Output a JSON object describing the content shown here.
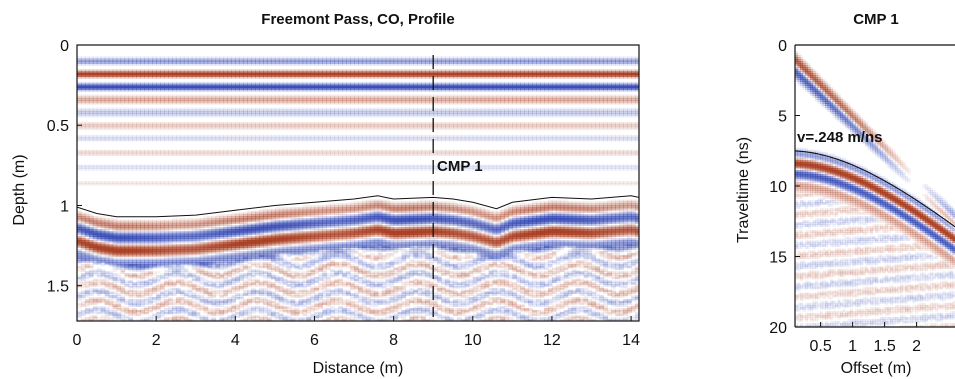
{
  "colors": {
    "red": "#a83c20",
    "blue": "#3347b4",
    "axis": "#111111",
    "pick": "#111111"
  },
  "chart_data": [
    {
      "type": "heatmap",
      "title": "Freemont Pass, CO, Profile",
      "xlabel": "Distance (m)",
      "ylabel": "Depth (m)",
      "xlim": [
        0,
        14.2
      ],
      "ylim": [
        0,
        1.72
      ],
      "y_inverted": true,
      "xticks": [
        0,
        2,
        4,
        6,
        8,
        10,
        12,
        14
      ],
      "yticks": [
        0,
        0.5,
        1,
        1.5
      ],
      "ytick_labels": [
        "0",
        "0.5",
        "1",
        "1.5"
      ],
      "reflections": [
        {
          "depth": 0.1,
          "amp": -0.45
        },
        {
          "depth": 0.18,
          "amp": 1.0
        },
        {
          "depth": 0.26,
          "amp": -1.0
        },
        {
          "depth": 0.34,
          "amp": 0.35
        },
        {
          "depth": 0.42,
          "amp": -0.25
        },
        {
          "depth": 0.5,
          "amp": 0.2
        },
        {
          "depth": 0.58,
          "amp": -0.15
        },
        {
          "depth": 0.67,
          "amp": 0.15
        },
        {
          "depth": 0.76,
          "amp": -0.12
        },
        {
          "depth": 0.86,
          "amp": 0.1
        }
      ],
      "interface": {
        "x": [
          0,
          0.5,
          1,
          2,
          3,
          4,
          5,
          6,
          7,
          7.6,
          8,
          9,
          9.5,
          10,
          10.6,
          11,
          12,
          13,
          14,
          14.2
        ],
        "depth": [
          1.01,
          1.05,
          1.07,
          1.07,
          1.06,
          1.03,
          1.0,
          0.98,
          0.96,
          0.94,
          0.96,
          0.95,
          0.96,
          0.98,
          1.02,
          0.98,
          0.95,
          0.96,
          0.94,
          0.95
        ]
      },
      "marker": {
        "x": 9,
        "label": "CMP 1"
      }
    },
    {
      "type": "heatmap",
      "title": "CMP 1",
      "xlabel": "Offset (m)",
      "ylabel": "Traveltime (ns)",
      "xlim": [
        0.1,
        2.6
      ],
      "ylim": [
        0,
        20
      ],
      "y_inverted": true,
      "xticks": [
        0.5,
        1,
        1.5,
        2
      ],
      "xtick_labels": [
        "0.5",
        "1",
        "1.5",
        "2"
      ],
      "yticks": [
        0,
        5,
        10,
        15,
        20
      ],
      "direct_waves": [
        {
          "t0": 0.6,
          "slope": 4.6,
          "amp": 0.8
        },
        {
          "t0": 1.4,
          "slope": 4.2,
          "amp": -0.8
        }
      ],
      "hyperbola": {
        "t0": 7.5,
        "velocity": 0.248
      },
      "annotation": "v=.248 m/ns"
    }
  ]
}
